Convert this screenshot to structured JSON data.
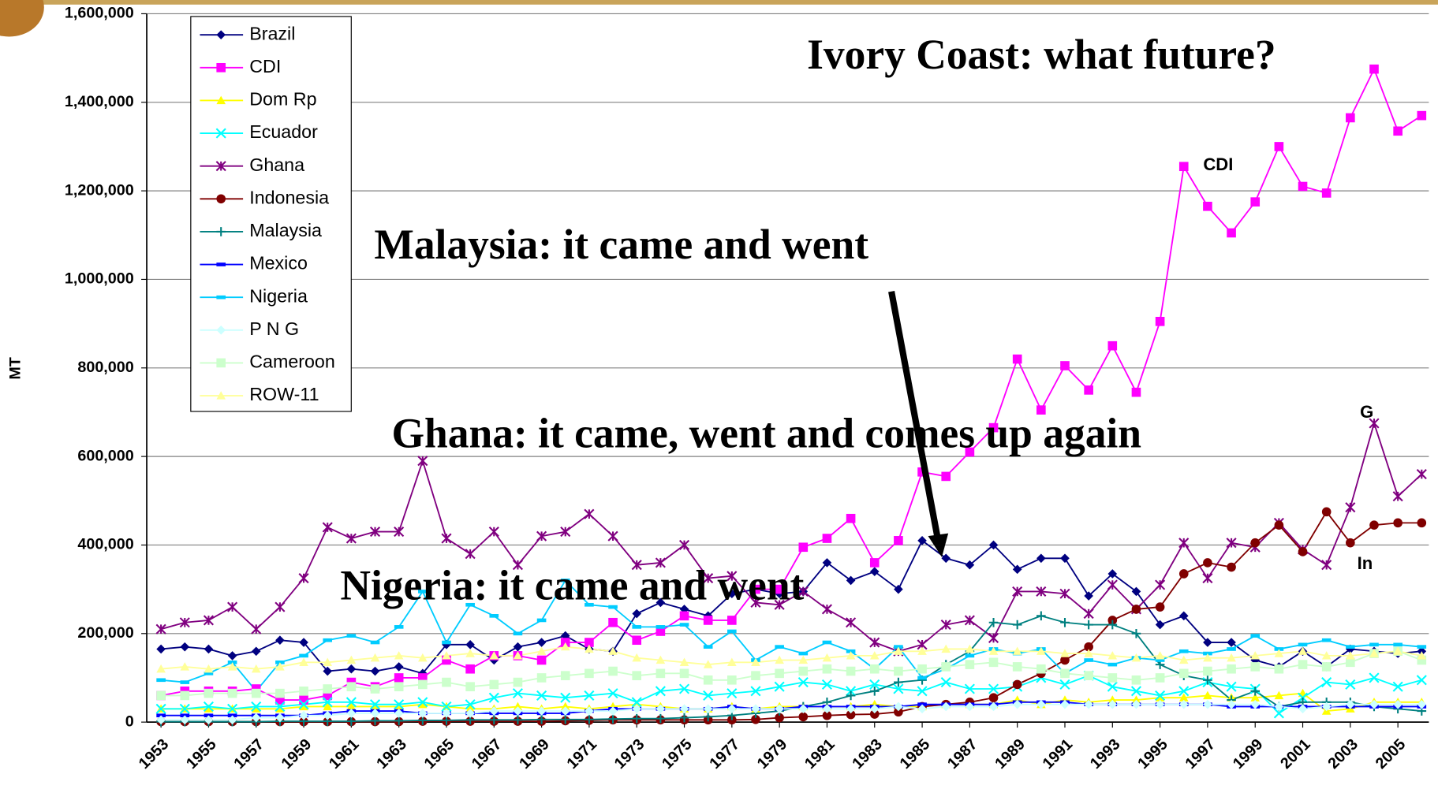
{
  "chart_data": {
    "type": "line",
    "y_label": "MT",
    "annotations": [
      {
        "text": "Ivory Coast: what future?"
      },
      {
        "text": "Malaysia: it came and went"
      },
      {
        "text": "Ghana: it came, went and comes up again"
      },
      {
        "text": "Nigeria: it came and went"
      },
      {
        "text": "CDI"
      },
      {
        "text": "G"
      },
      {
        "text": "In"
      }
    ],
    "x": [
      1953,
      1954,
      1955,
      1956,
      1957,
      1958,
      1959,
      1960,
      1961,
      1962,
      1963,
      1964,
      1965,
      1966,
      1967,
      1968,
      1969,
      1970,
      1971,
      1972,
      1973,
      1974,
      1975,
      1976,
      1977,
      1978,
      1979,
      1980,
      1981,
      1982,
      1983,
      1984,
      1985,
      1986,
      1987,
      1988,
      1989,
      1990,
      1991,
      1992,
      1993,
      1994,
      1995,
      1996,
      1997,
      1998,
      1999,
      2000,
      2001,
      2002,
      2003,
      2004,
      2005,
      2006
    ],
    "xlim": [
      1952.4,
      2006.3
    ],
    "xticks": [
      1953,
      1955,
      1957,
      1959,
      1961,
      1963,
      1965,
      1967,
      1969,
      1971,
      1973,
      1975,
      1977,
      1979,
      1981,
      1983,
      1985,
      1987,
      1989,
      1991,
      1993,
      1995,
      1997,
      1999,
      2001,
      2003,
      2005
    ],
    "ylim": [
      0,
      1600000
    ],
    "yticks": [
      0,
      {
        "value": 200000,
        "label": "200,000"
      },
      {
        "value": 400000,
        "label": "400,000"
      },
      {
        "value": 600000,
        "label": "600,000"
      },
      {
        "value": 800000,
        "label": "800,000"
      },
      {
        "value": 1000000,
        "label": "1,000,000"
      },
      {
        "value": 1200000,
        "label": "1,200,000"
      },
      {
        "value": 1400000,
        "label": "1,400,000"
      },
      {
        "value": 1600000,
        "label": "1,600,000"
      }
    ],
    "grid": true,
    "legend": "upper left",
    "series": [
      {
        "name": "Brazil",
        "color": "#000080",
        "marker": "diamond",
        "values": [
          165000,
          170000,
          165000,
          150000,
          160000,
          185000,
          180000,
          115000,
          120000,
          115000,
          125000,
          110000,
          175000,
          175000,
          140000,
          170000,
          180000,
          195000,
          165000,
          160000,
          245000,
          270000,
          255000,
          240000,
          290000,
          300000,
          290000,
          295000,
          360000,
          320000,
          340000,
          300000,
          410000,
          370000,
          355000,
          400000,
          345000,
          370000,
          370000,
          285000,
          335000,
          295000,
          220000,
          240000,
          180000,
          180000,
          140000,
          125000,
          160000,
          125000,
          165000,
          160000,
          155000,
          160000
        ]
      },
      {
        "name": "CDI",
        "color": "#ff00ff",
        "marker": "square",
        "values": [
          60000,
          70000,
          70000,
          70000,
          75000,
          50000,
          50000,
          60000,
          90000,
          80000,
          100000,
          100000,
          140000,
          120000,
          150000,
          150000,
          140000,
          180000,
          180000,
          225000,
          185000,
          205000,
          240000,
          230000,
          230000,
          300000,
          300000,
          395000,
          415000,
          460000,
          360000,
          410000,
          565000,
          555000,
          610000,
          665000,
          820000,
          705000,
          805000,
          750000,
          850000,
          745000,
          905000,
          1255000,
          1165000,
          1105000,
          1175000,
          1300000,
          1210000,
          1195000,
          1365000,
          1475000,
          1335000,
          1370000
        ]
      },
      {
        "name": "Dom Rp",
        "color": "#ffff00",
        "marker": "triangle",
        "values": [
          30000,
          30000,
          30000,
          30000,
          30000,
          30000,
          35000,
          35000,
          35000,
          35000,
          35000,
          40000,
          35000,
          30000,
          30000,
          35000,
          30000,
          35000,
          30000,
          35000,
          40000,
          35000,
          30000,
          30000,
          35000,
          30000,
          35000,
          35000,
          35000,
          35000,
          40000,
          35000,
          35000,
          40000,
          40000,
          40000,
          50000,
          40000,
          50000,
          45000,
          50000,
          50000,
          55000,
          55000,
          60000,
          55000,
          55000,
          60000,
          65000,
          25000,
          30000,
          45000,
          45000,
          45000
        ]
      },
      {
        "name": "Ecuador",
        "color": "#00ffff",
        "marker": "x",
        "values": [
          30000,
          30000,
          35000,
          30000,
          35000,
          35000,
          40000,
          45000,
          45000,
          40000,
          40000,
          45000,
          35000,
          40000,
          55000,
          65000,
          60000,
          55000,
          60000,
          65000,
          45000,
          70000,
          75000,
          60000,
          65000,
          70000,
          80000,
          90000,
          85000,
          70000,
          85000,
          75000,
          70000,
          90000,
          75000,
          75000,
          80000,
          100000,
          85000,
          105000,
          80000,
          70000,
          60000,
          70000,
          90000,
          80000,
          75000,
          20000,
          55000,
          90000,
          85000,
          100000,
          80000,
          95000
        ]
      },
      {
        "name": "Ghana",
        "color": "#800080",
        "marker": "star",
        "values": [
          210000,
          225000,
          230000,
          260000,
          210000,
          260000,
          325000,
          440000,
          415000,
          430000,
          430000,
          590000,
          415000,
          380000,
          430000,
          355000,
          420000,
          430000,
          470000,
          420000,
          355000,
          360000,
          400000,
          325000,
          330000,
          270000,
          265000,
          295000,
          255000,
          225000,
          180000,
          160000,
          175000,
          220000,
          230000,
          190000,
          295000,
          295000,
          290000,
          245000,
          310000,
          255000,
          310000,
          405000,
          325000,
          405000,
          395000,
          450000,
          390000,
          355000,
          485000,
          675000,
          510000,
          560000
        ]
      },
      {
        "name": "Indonesia",
        "color": "#800000",
        "marker": "circle",
        "values": [
          1000,
          1000,
          1000,
          1000,
          1000,
          1000,
          1000,
          1000,
          1000,
          1000,
          1000,
          2000,
          2000,
          2000,
          2000,
          2000,
          2000,
          3000,
          4000,
          5000,
          5000,
          5000,
          5000,
          5000,
          5000,
          6000,
          10000,
          12000,
          15000,
          17000,
          18000,
          23000,
          35000,
          40000,
          45000,
          55000,
          85000,
          110000,
          140000,
          170000,
          230000,
          255000,
          260000,
          335000,
          360000,
          350000,
          405000,
          445000,
          385000,
          475000,
          405000,
          445000,
          450000,
          450000
        ]
      },
      {
        "name": "Malaysia",
        "color": "#008080",
        "marker": "plus",
        "values": [
          1000,
          1000,
          1000,
          1000,
          1000,
          2000,
          2000,
          2000,
          2000,
          3000,
          3000,
          4000,
          4000,
          5000,
          5000,
          5000,
          6000,
          6000,
          6000,
          7000,
          8000,
          8000,
          10000,
          12000,
          15000,
          20000,
          25000,
          35000,
          45000,
          60000,
          70000,
          90000,
          95000,
          130000,
          160000,
          225000,
          220000,
          240000,
          225000,
          220000,
          220000,
          200000,
          130000,
          105000,
          95000,
          50000,
          70000,
          35000,
          45000,
          45000,
          45000,
          35000,
          30000,
          25000
        ]
      },
      {
        "name": "Mexico",
        "color": "#0000ff",
        "marker": "dash",
        "values": [
          15000,
          15000,
          15000,
          15000,
          15000,
          15000,
          15000,
          20000,
          25000,
          25000,
          25000,
          20000,
          20000,
          20000,
          20000,
          20000,
          20000,
          20000,
          25000,
          30000,
          30000,
          30000,
          30000,
          30000,
          35000,
          30000,
          30000,
          35000,
          35000,
          35000,
          35000,
          35000,
          40000,
          40000,
          40000,
          40000,
          45000,
          45000,
          45000,
          40000,
          40000,
          40000,
          40000,
          40000,
          40000,
          35000,
          35000,
          35000,
          35000,
          35000,
          35000,
          35000,
          35000,
          35000
        ]
      },
      {
        "name": "Nigeria",
        "color": "#00ccff",
        "marker": "dash",
        "values": [
          95000,
          90000,
          110000,
          135000,
          70000,
          135000,
          150000,
          185000,
          195000,
          180000,
          215000,
          295000,
          180000,
          265000,
          240000,
          200000,
          230000,
          320000,
          265000,
          260000,
          215000,
          215000,
          220000,
          170000,
          205000,
          140000,
          170000,
          155000,
          180000,
          160000,
          120000,
          170000,
          100000,
          120000,
          150000,
          165000,
          155000,
          165000,
          110000,
          140000,
          130000,
          145000,
          140000,
          160000,
          155000,
          165000,
          195000,
          165000,
          175000,
          185000,
          170000,
          175000,
          175000,
          170000
        ]
      },
      {
        "name": "P N G",
        "color": "#ccffff",
        "marker": "diamond",
        "values": [
          5000,
          5000,
          5000,
          5000,
          10000,
          10000,
          15000,
          15000,
          20000,
          20000,
          20000,
          20000,
          20000,
          20000,
          25000,
          25000,
          25000,
          25000,
          25000,
          25000,
          30000,
          30000,
          30000,
          30000,
          30000,
          30000,
          30000,
          30000,
          30000,
          30000,
          30000,
          35000,
          30000,
          35000,
          35000,
          35000,
          40000,
          40000,
          40000,
          40000,
          40000,
          40000,
          40000,
          40000,
          40000,
          40000,
          40000,
          35000,
          30000,
          35000,
          40000,
          40000,
          40000,
          40000
        ]
      },
      {
        "name": "Cameroon",
        "color": "#ccffcc",
        "marker": "square",
        "values": [
          60000,
          60000,
          65000,
          65000,
          65000,
          65000,
          70000,
          75000,
          80000,
          75000,
          80000,
          85000,
          90000,
          80000,
          85000,
          90000,
          100000,
          105000,
          110000,
          115000,
          105000,
          110000,
          110000,
          95000,
          95000,
          105000,
          110000,
          115000,
          120000,
          115000,
          120000,
          115000,
          120000,
          125000,
          130000,
          135000,
          125000,
          120000,
          110000,
          105000,
          100000,
          95000,
          100000,
          110000,
          115000,
          120000,
          125000,
          120000,
          130000,
          125000,
          135000,
          155000,
          160000,
          140000
        ]
      },
      {
        "name": "ROW-11",
        "color": "#ffff99",
        "marker": "triangle",
        "values": [
          120000,
          125000,
          120000,
          125000,
          120000,
          125000,
          135000,
          135000,
          140000,
          145000,
          150000,
          145000,
          150000,
          155000,
          150000,
          150000,
          160000,
          170000,
          165000,
          160000,
          145000,
          140000,
          135000,
          130000,
          135000,
          135000,
          140000,
          140000,
          145000,
          150000,
          150000,
          160000,
          160000,
          165000,
          165000,
          160000,
          160000,
          160000,
          155000,
          155000,
          150000,
          145000,
          150000,
          140000,
          145000,
          145000,
          150000,
          155000,
          160000,
          150000,
          150000,
          155000,
          160000,
          150000
        ]
      }
    ]
  }
}
